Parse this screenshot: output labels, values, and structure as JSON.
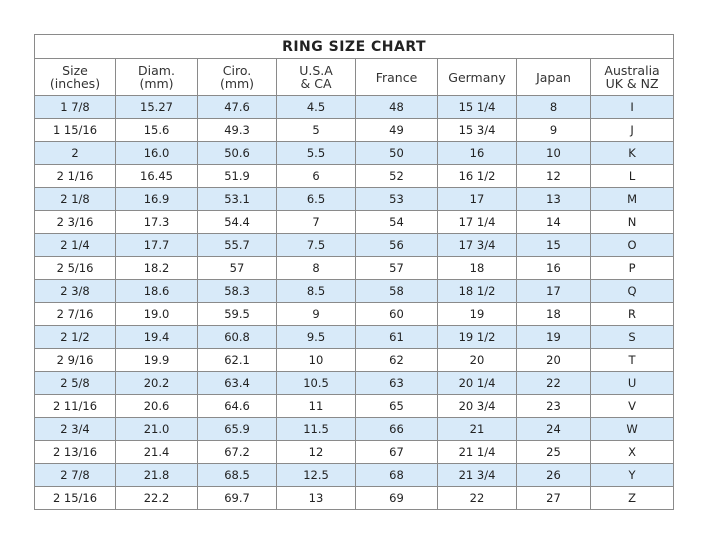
{
  "title": "RING SIZE CHART",
  "columns": [
    [
      "Size",
      "(inches)"
    ],
    [
      "Diam.",
      "(mm)"
    ],
    [
      "Ciro.",
      "(mm)"
    ],
    [
      "U.S.A",
      "& CA"
    ],
    [
      "France",
      ""
    ],
    [
      "Germany",
      ""
    ],
    [
      "Japan",
      ""
    ],
    [
      "Australia",
      "UK & NZ"
    ]
  ],
  "rows": [
    [
      "1 7/8",
      "15.27",
      "47.6",
      "4.5",
      "48",
      "15 1/4",
      "8",
      "I"
    ],
    [
      "1 15/16",
      "15.6",
      "49.3",
      "5",
      "49",
      "15 3/4",
      "9",
      "J"
    ],
    [
      "2",
      "16.0",
      "50.6",
      "5.5",
      "50",
      "16",
      "10",
      "K"
    ],
    [
      "2 1/16",
      "16.45",
      "51.9",
      "6",
      "52",
      "16 1/2",
      "12",
      "L"
    ],
    [
      "2 1/8",
      "16.9",
      "53.1",
      "6.5",
      "53",
      "17",
      "13",
      "M"
    ],
    [
      "2 3/16",
      "17.3",
      "54.4",
      "7",
      "54",
      "17 1/4",
      "14",
      "N"
    ],
    [
      "2 1/4",
      "17.7",
      "55.7",
      "7.5",
      "56",
      "17 3/4",
      "15",
      "O"
    ],
    [
      "2 5/16",
      "18.2",
      "57",
      "8",
      "57",
      "18",
      "16",
      "P"
    ],
    [
      "2 3/8",
      "18.6",
      "58.3",
      "8.5",
      "58",
      "18 1/2",
      "17",
      "Q"
    ],
    [
      "2 7/16",
      "19.0",
      "59.5",
      "9",
      "60",
      "19",
      "18",
      "R"
    ],
    [
      "2 1/2",
      "19.4",
      "60.8",
      "9.5",
      "61",
      "19 1/2",
      "19",
      "S"
    ],
    [
      "2 9/16",
      "19.9",
      "62.1",
      "10",
      "62",
      "20",
      "20",
      "T"
    ],
    [
      "2 5/8",
      "20.2",
      "63.4",
      "10.5",
      "63",
      "20 1/4",
      "22",
      "U"
    ],
    [
      "2 11/16",
      "20.6",
      "64.6",
      "11",
      "65",
      "20 3/4",
      "23",
      "V"
    ],
    [
      "2 3/4",
      "21.0",
      "65.9",
      "11.5",
      "66",
      "21",
      "24",
      "W"
    ],
    [
      "2 13/16",
      "21.4",
      "67.2",
      "12",
      "67",
      "21 1/4",
      "25",
      "X"
    ],
    [
      "2 7/8",
      "21.8",
      "68.5",
      "12.5",
      "68",
      "21 3/4",
      "26",
      "Y"
    ],
    [
      "2 15/16",
      "22.2",
      "69.7",
      "13",
      "69",
      "22",
      "27",
      "Z"
    ]
  ],
  "colors": {
    "alt_row": "#d8eaf9",
    "border": "#8a8a8a"
  }
}
